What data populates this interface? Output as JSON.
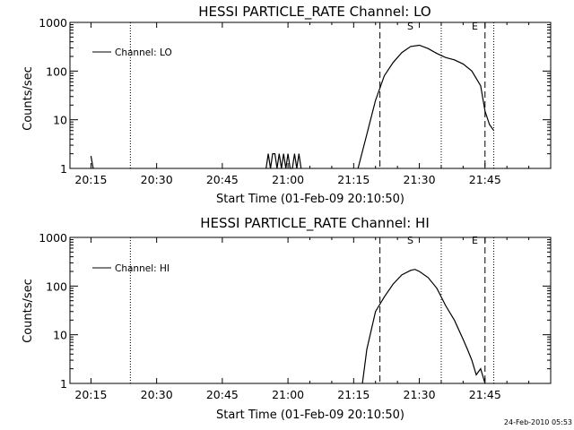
{
  "footer_timestamp": "24-Feb-2010 05:53",
  "chart_data": [
    {
      "type": "line",
      "title": "HESSI PARTICLE_RATE Channel: LO",
      "xlabel": "Start Time (01-Feb-09 20:10:50)",
      "ylabel": "Counts/sec",
      "yscale": "log",
      "ylim": [
        1,
        1000
      ],
      "xlim_minutes": [
        20.17,
        22.0
      ],
      "x_ticks": [
        "20:15",
        "20:30",
        "20:45",
        "21:00",
        "21:15",
        "21:30",
        "21:45"
      ],
      "y_ticks": [
        "1",
        "10",
        "100",
        "1000"
      ],
      "legend": {
        "label": "Channel: LO",
        "position": "top-left"
      },
      "markers": [
        {
          "label": "S",
          "time": "21:21",
          "style": "dashed"
        },
        {
          "label": "E",
          "time": "21:35",
          "style": "dotted"
        }
      ],
      "vlines": [
        {
          "time": "20:24",
          "style": "dotted"
        },
        {
          "time": "21:45",
          "style": "dashed"
        },
        {
          "time": "21:47",
          "style": "dotted"
        }
      ],
      "series": [
        {
          "name": "Channel: LO",
          "segments": [
            {
              "x": [
                "20:15",
                "20:15.5"
              ],
              "y": [
                1.8,
                1
              ]
            },
            {
              "x": [
                "20:55",
                "20:55.5",
                "20:56",
                "20:56.5",
                "20:57",
                "20:57.5",
                "20:58",
                "20:58.5",
                "20:59",
                "20:59.5",
                "21:00",
                "21:00.5",
                "21:01",
                "21:01.5",
                "21:02",
                "21:02.5",
                "21:03"
              ],
              "y": [
                1,
                2,
                1,
                2,
                2,
                1,
                2,
                1,
                2,
                1,
                2,
                1,
                1,
                2,
                1,
                2,
                1
              ]
            },
            {
              "x": [
                "21:16",
                "21:18",
                "21:20",
                "21:22",
                "21:24",
                "21:26",
                "21:28",
                "21:30",
                "21:32",
                "21:34",
                "21:36",
                "21:38",
                "21:40",
                "21:42",
                "21:44",
                "21:45",
                "21:46",
                "21:47"
              ],
              "y": [
                1,
                5,
                25,
                80,
                150,
                240,
                320,
                340,
                290,
                230,
                190,
                170,
                140,
                100,
                50,
                15,
                8,
                6
              ]
            }
          ]
        }
      ]
    },
    {
      "type": "line",
      "title": "HESSI PARTICLE_RATE Channel: HI",
      "xlabel": "Start Time (01-Feb-09 20:10:50)",
      "ylabel": "Counts/sec",
      "yscale": "log",
      "ylim": [
        1,
        1000
      ],
      "xlim_minutes": [
        20.17,
        22.0
      ],
      "x_ticks": [
        "20:15",
        "20:30",
        "20:45",
        "21:00",
        "21:15",
        "21:30",
        "21:45"
      ],
      "y_ticks": [
        "1",
        "10",
        "100",
        "1000"
      ],
      "legend": {
        "label": "Channel: HI",
        "position": "top-left"
      },
      "markers": [
        {
          "label": "S",
          "time": "21:21",
          "style": "dashed"
        },
        {
          "label": "E",
          "time": "21:35",
          "style": "dotted"
        }
      ],
      "vlines": [
        {
          "time": "20:24",
          "style": "dotted"
        },
        {
          "time": "21:45",
          "style": "dashed"
        },
        {
          "time": "21:47",
          "style": "dotted"
        }
      ],
      "series": [
        {
          "name": "Channel: HI",
          "segments": [
            {
              "x": [
                "21:17",
                "21:18",
                "21:20",
                "21:22",
                "21:24",
                "21:26",
                "21:28",
                "21:29",
                "21:30",
                "21:32",
                "21:34",
                "21:36",
                "21:38",
                "21:40",
                "21:41",
                "21:42",
                "21:43",
                "21:44",
                "21:45"
              ],
              "y": [
                1,
                5,
                30,
                60,
                110,
                170,
                210,
                220,
                200,
                150,
                90,
                40,
                20,
                8,
                5,
                3,
                1.5,
                2,
                1
              ]
            }
          ]
        }
      ]
    }
  ]
}
